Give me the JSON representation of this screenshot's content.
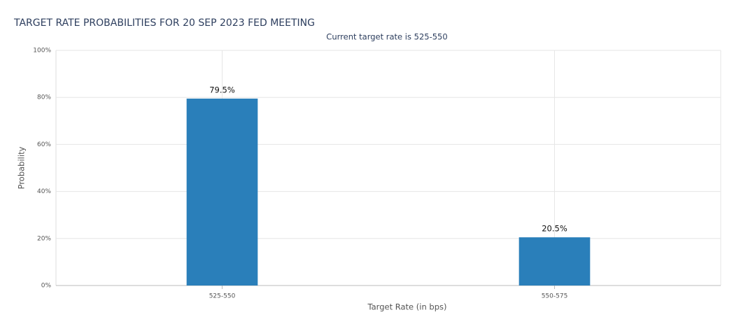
{
  "chart_data": {
    "type": "bar",
    "title": "TARGET RATE PROBABILITIES FOR 20 SEP 2023 FED MEETING",
    "subtitle": "Current target rate is 525-550",
    "x_label": "Target Rate (in bps)",
    "y_label": "Probability",
    "categories": [
      "525-550",
      "550-575"
    ],
    "values": [
      79.5,
      20.5
    ],
    "value_labels": [
      "79.5%",
      "20.5%"
    ],
    "color": "#2a7fba",
    "ylim": [
      0,
      100
    ],
    "yticks": [
      {
        "value": 0,
        "label": "0%"
      },
      {
        "value": 20,
        "label": "20%"
      },
      {
        "value": 40,
        "label": "40%"
      },
      {
        "value": 60,
        "label": "60%"
      },
      {
        "value": 80,
        "label": "80%"
      },
      {
        "value": 100,
        "label": "100%"
      }
    ],
    "grid": true
  }
}
